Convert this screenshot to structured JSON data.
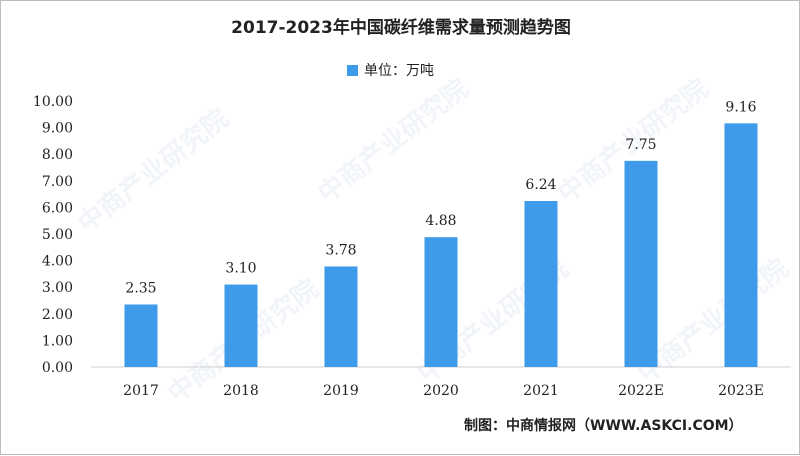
{
  "chart_data": {
    "type": "bar",
    "title": "2017-2023年中国碳纤维需求量预测趋势图",
    "legend": [
      "单位：万吨"
    ],
    "legend_position": "top-center",
    "categories": [
      "2017",
      "2018",
      "2019",
      "2020",
      "2021",
      "2022E",
      "2023E"
    ],
    "series": [
      {
        "values": [
          2.35,
          3.1,
          3.78,
          4.88,
          6.24,
          7.75,
          9.16
        ]
      }
    ],
    "data_labels": [
      "2.35",
      "3.10",
      "3.78",
      "4.88",
      "6.24",
      "7.75",
      "9.16"
    ],
    "y_ticks": [
      "0.00",
      "1.00",
      "2.00",
      "3.00",
      "4.00",
      "5.00",
      "6.00",
      "7.00",
      "8.00",
      "9.00",
      "10.00"
    ],
    "ylim": [
      0,
      10
    ],
    "grid": false,
    "bar_color": "#3d9be9",
    "source": "制图：中商情报网（WWW.ASKCI.COM）",
    "watermark": "中商产业研究院"
  }
}
